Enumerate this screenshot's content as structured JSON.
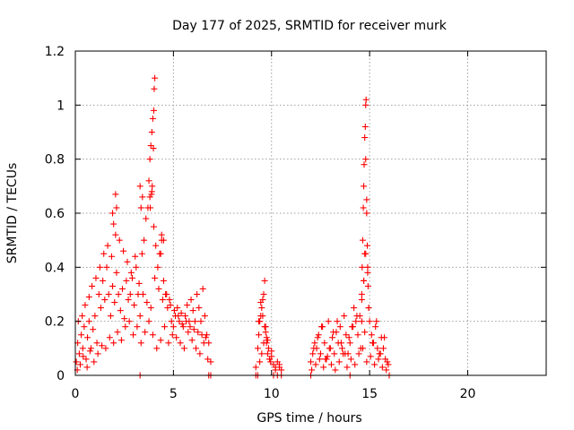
{
  "chart_data": {
    "type": "scatter",
    "title": "Day 177 of 2025, SRMTID for receiver murk",
    "xlabel": "GPS time / hours",
    "ylabel": "SRMTID / TECUs",
    "xlim": [
      0,
      24
    ],
    "ylim": [
      0,
      1.2
    ],
    "xticks": [
      0,
      5,
      10,
      15,
      20
    ],
    "xtick_labels": [
      "0",
      "5",
      "10",
      "15",
      "20"
    ],
    "yticks": [
      0,
      0.2,
      0.4,
      0.6,
      0.8,
      1,
      1.2
    ],
    "ytick_labels": [
      "0",
      "0.2",
      "0.4",
      "0.6",
      "0.8",
      "1",
      "1.2"
    ],
    "grid": true,
    "marker": "+",
    "series": [
      {
        "name": "SRMTID",
        "color": "#ff0000",
        "x": [
          0.05,
          0.12,
          0.2,
          0.3,
          0.38,
          0.45,
          0.55,
          0.62,
          0.7,
          0.8,
          0.9,
          1.0,
          1.1,
          1.2,
          1.3,
          1.4,
          1.5,
          1.6,
          1.7,
          1.8,
          1.9,
          2.0,
          2.1,
          2.2,
          2.3,
          2.4,
          2.5,
          2.6,
          2.7,
          2.8,
          2.9,
          3.0,
          3.1,
          3.2,
          3.3,
          3.4,
          3.5,
          3.6,
          3.7,
          3.8,
          3.9,
          4.0,
          4.1,
          4.2,
          4.3,
          4.4,
          4.5,
          4.6,
          4.7,
          4.8,
          4.9,
          5.0,
          5.1,
          5.2,
          5.3,
          5.4,
          5.5,
          5.6,
          5.7,
          5.8,
          5.9,
          6.0,
          6.1,
          6.2,
          6.3,
          6.4,
          6.5,
          6.6,
          6.7,
          6.8,
          6.9,
          0.1,
          0.25,
          0.4,
          0.6,
          0.75,
          0.95,
          1.15,
          1.35,
          1.55,
          1.75,
          1.95,
          2.15,
          2.35,
          2.55,
          2.75,
          2.95,
          3.15,
          3.35,
          3.55,
          3.75,
          3.95,
          4.15,
          4.35,
          4.55,
          4.75,
          4.95,
          5.15,
          5.35,
          5.55,
          5.75,
          5.95,
          6.15,
          6.35,
          6.55,
          6.75,
          0.15,
          0.35,
          0.5,
          0.7,
          0.85,
          1.05,
          1.25,
          1.45,
          1.65,
          1.85,
          2.05,
          2.25,
          2.45,
          2.65,
          2.85,
          3.05,
          3.25,
          3.45,
          3.65,
          3.85,
          4.05,
          4.25,
          4.45,
          4.65,
          4.85,
          5.05,
          5.25,
          5.45,
          5.65,
          5.85,
          6.05,
          6.25,
          6.45,
          6.65,
          3.75,
          3.8,
          3.85,
          3.9,
          3.95,
          4.0,
          4.02,
          4.05,
          3.98,
          3.92,
          3.88,
          3.82,
          2.05,
          2.1,
          1.95,
          1.9,
          3.3,
          3.35,
          3.42,
          4.35,
          4.4,
          4.5,
          9.2,
          9.3,
          9.35,
          9.4,
          9.45,
          9.5,
          9.55,
          9.6,
          9.65,
          9.7,
          9.75,
          9.8,
          9.85,
          9.9,
          9.95,
          10.0,
          10.1,
          10.2,
          10.3,
          10.4,
          10.5,
          9.4,
          9.5,
          9.6,
          9.7,
          9.8,
          9.9,
          10.0,
          10.2,
          10.4,
          9.35,
          9.45,
          9.55,
          9.65,
          9.75,
          12.0,
          12.1,
          12.2,
          12.3,
          12.4,
          12.5,
          12.6,
          12.7,
          12.8,
          12.9,
          13.0,
          13.1,
          13.2,
          13.3,
          13.4,
          13.5,
          13.6,
          13.7,
          13.8,
          13.9,
          14.0,
          14.1,
          14.2,
          14.3,
          14.4,
          14.5,
          14.6,
          14.7,
          14.8,
          14.9,
          15.0,
          15.1,
          15.2,
          15.3,
          15.4,
          15.5,
          15.6,
          15.7,
          15.8,
          15.9,
          12.05,
          12.25,
          12.45,
          12.65,
          12.85,
          13.05,
          13.25,
          13.45,
          13.65,
          13.85,
          14.05,
          14.25,
          14.45,
          14.65,
          14.85,
          15.05,
          15.25,
          15.45,
          15.65,
          15.85,
          12.15,
          12.35,
          12.55,
          12.75,
          12.95,
          13.15,
          13.35,
          13.55,
          13.75,
          13.95,
          14.15,
          14.35,
          14.55,
          14.75,
          14.95,
          15.15,
          15.35,
          15.55,
          15.75,
          15.95,
          14.6,
          14.62,
          14.65,
          14.68,
          14.7,
          14.72,
          14.75,
          14.78,
          14.8,
          14.82,
          14.85,
          14.88,
          14.9,
          14.92,
          14.95,
          14.7,
          14.75,
          14.8,
          14.85,
          14.6,
          3.3,
          6.8,
          6.9,
          9.2,
          9.3,
          10.1,
          10.3,
          10.5,
          12.0,
          14.0,
          16.0
        ],
        "y": [
          0.05,
          0.12,
          0.08,
          0.15,
          0.1,
          0.18,
          0.06,
          0.14,
          0.2,
          0.1,
          0.17,
          0.22,
          0.12,
          0.3,
          0.25,
          0.35,
          0.28,
          0.4,
          0.3,
          0.22,
          0.33,
          0.27,
          0.38,
          0.3,
          0.24,
          0.32,
          0.21,
          0.35,
          0.28,
          0.3,
          0.36,
          0.26,
          0.4,
          0.3,
          0.22,
          0.45,
          0.5,
          0.58,
          0.62,
          0.66,
          0.68,
          0.55,
          0.48,
          0.4,
          0.45,
          0.5,
          0.35,
          0.3,
          0.25,
          0.28,
          0.2,
          0.18,
          0.22,
          0.25,
          0.2,
          0.23,
          0.18,
          0.22,
          0.26,
          0.2,
          0.28,
          0.24,
          0.2,
          0.3,
          0.25,
          0.2,
          0.32,
          0.22,
          0.15,
          0.12,
          0.05,
          0.02,
          0.04,
          0.07,
          0.03,
          0.09,
          0.05,
          0.08,
          0.11,
          0.1,
          0.14,
          0.12,
          0.16,
          0.13,
          0.18,
          0.2,
          0.15,
          0.18,
          0.12,
          0.16,
          0.2,
          0.15,
          0.1,
          0.13,
          0.18,
          0.12,
          0.15,
          0.14,
          0.12,
          0.1,
          0.16,
          0.13,
          0.1,
          0.08,
          0.12,
          0.06,
          0.2,
          0.22,
          0.26,
          0.29,
          0.33,
          0.36,
          0.4,
          0.45,
          0.48,
          0.44,
          0.52,
          0.5,
          0.46,
          0.42,
          0.38,
          0.44,
          0.34,
          0.3,
          0.27,
          0.25,
          0.36,
          0.32,
          0.28,
          0.3,
          0.26,
          0.24,
          0.22,
          0.19,
          0.2,
          0.18,
          0.17,
          0.16,
          0.15,
          0.14,
          0.72,
          0.8,
          0.85,
          0.9,
          0.95,
          0.98,
          1.06,
          1.1,
          0.84,
          0.7,
          0.67,
          0.62,
          0.67,
          0.62,
          0.56,
          0.6,
          0.7,
          0.62,
          0.66,
          0.45,
          0.52,
          0.5,
          0.03,
          0.1,
          0.15,
          0.2,
          0.22,
          0.25,
          0.28,
          0.3,
          0.35,
          0.18,
          0.12,
          0.08,
          0.1,
          0.06,
          0.05,
          0.07,
          0.04,
          0.02,
          0.05,
          0.03,
          0.02,
          0.05,
          0.08,
          0.12,
          0.16,
          0.13,
          0.06,
          0.09,
          0.03,
          0.04,
          0.2,
          0.27,
          0.22,
          0.18,
          0.14,
          0.05,
          0.08,
          0.12,
          0.1,
          0.15,
          0.08,
          0.18,
          0.12,
          0.06,
          0.2,
          0.1,
          0.14,
          0.08,
          0.16,
          0.12,
          0.18,
          0.1,
          0.22,
          0.15,
          0.08,
          0.12,
          0.18,
          0.25,
          0.2,
          0.15,
          0.22,
          0.28,
          0.35,
          0.45,
          0.38,
          0.2,
          0.15,
          0.12,
          0.18,
          0.1,
          0.08,
          0.14,
          0.1,
          0.06,
          0.05,
          0.02,
          0.04,
          0.06,
          0.03,
          0.07,
          0.04,
          0.02,
          0.05,
          0.08,
          0.03,
          0.06,
          0.04,
          0.08,
          0.1,
          0.05,
          0.07,
          0.04,
          0.06,
          0.03,
          0.02,
          0.1,
          0.14,
          0.18,
          0.06,
          0.1,
          0.16,
          0.2,
          0.12,
          0.08,
          0.14,
          0.18,
          0.22,
          0.1,
          0.16,
          0.25,
          0.12,
          0.2,
          0.08,
          0.14,
          0.04,
          0.3,
          0.4,
          0.5,
          0.62,
          0.7,
          0.78,
          0.88,
          0.92,
          1.0,
          1.02,
          0.6,
          0.48,
          0.4,
          0.33,
          0.25,
          0.35,
          0.45,
          0.8,
          0.65,
          0.2,
          0.0,
          0.0,
          0.0,
          0.0,
          0.0,
          0.0,
          0.0,
          0.0,
          0.0,
          0.0,
          0.0
        ]
      }
    ]
  }
}
